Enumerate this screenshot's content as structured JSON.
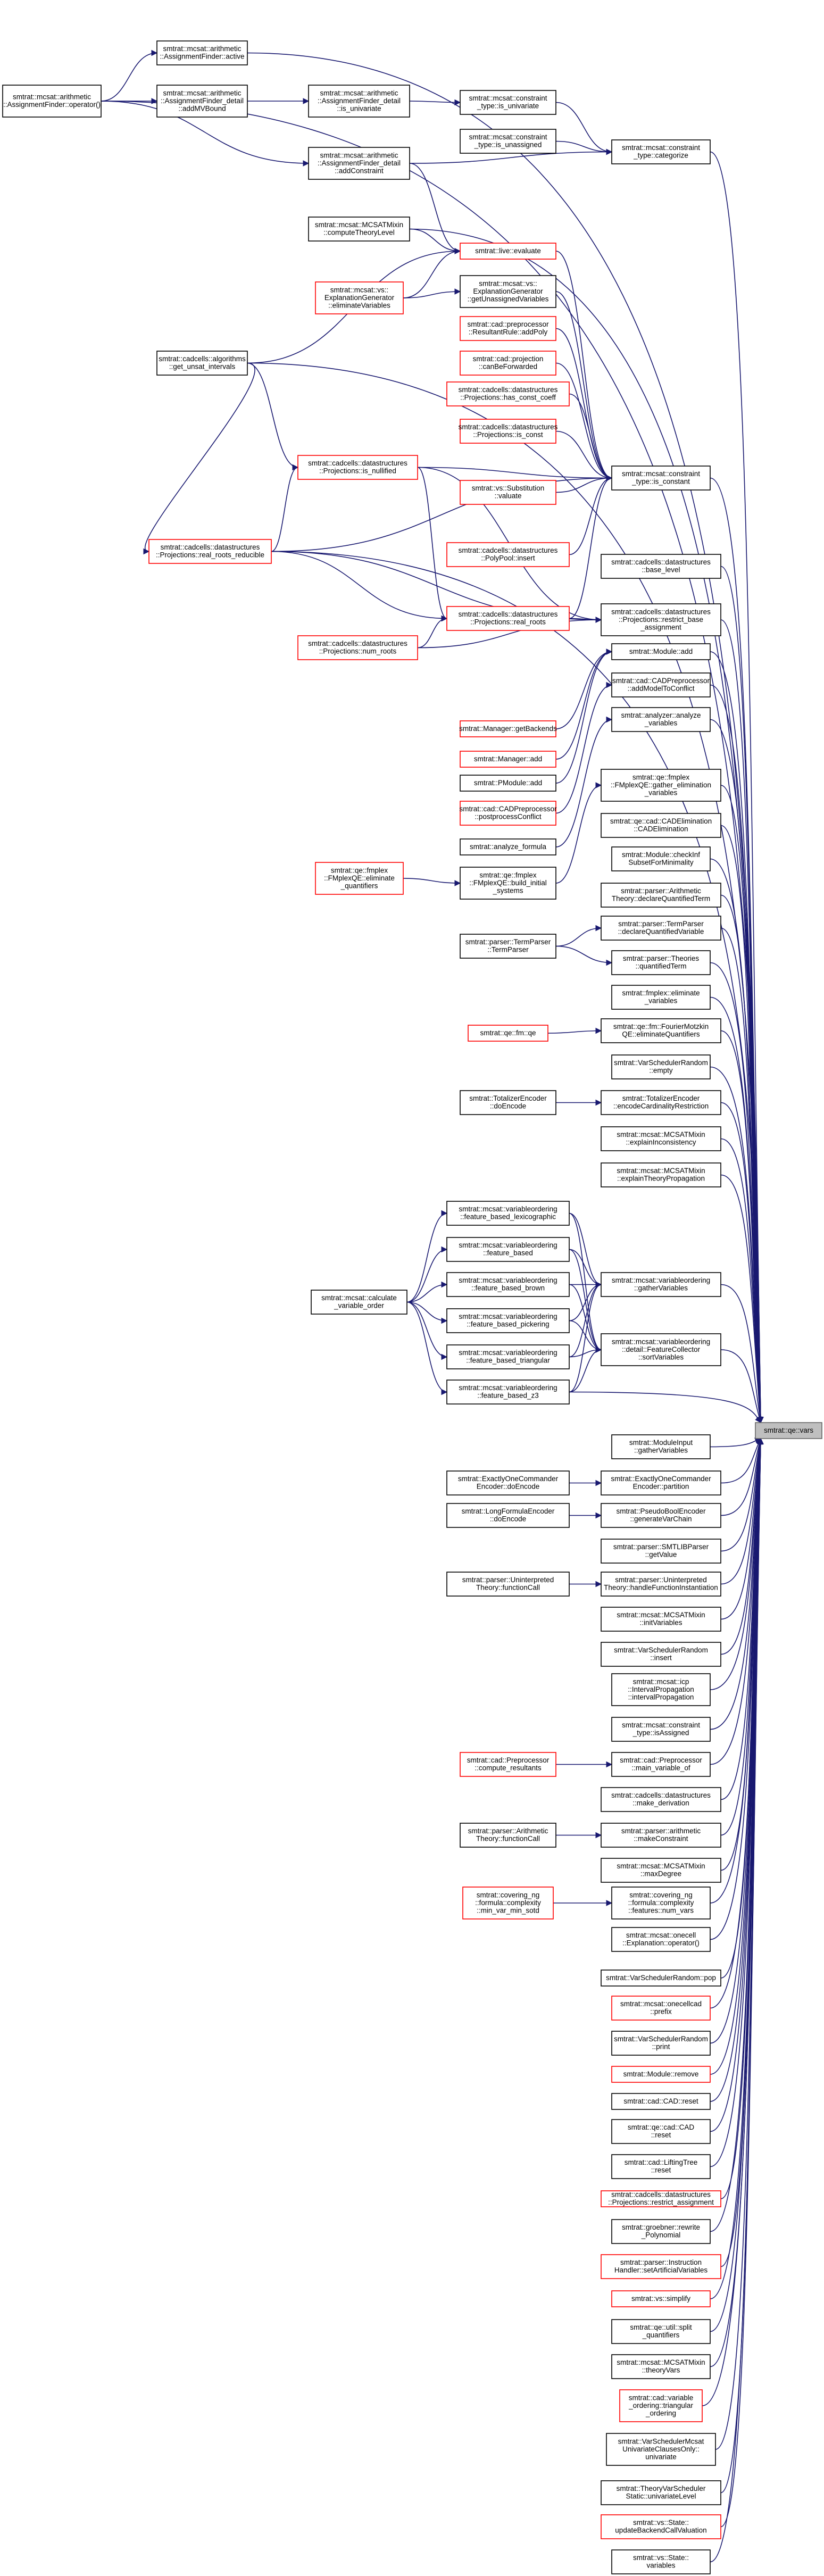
{
  "graph": {
    "title": "",
    "edge_color": "#191970",
    "target_fill": "#bfbfbf",
    "normal_border": "#000000",
    "red_border": "#ff0000",
    "nodes": [
      {
        "id": "af_active",
        "label": [
          "smtrat::mcsat::arithmetic",
          "::AssignmentFinder::active"
        ],
        "style": "black"
      },
      {
        "id": "af_op",
        "label": [
          "smtrat::mcsat::arithmetic",
          "::AssignmentFinder::operator()"
        ],
        "style": "black"
      },
      {
        "id": "af_addmvbound",
        "label": [
          "smtrat::mcsat::arithmetic",
          "::AssignmentFinder_detail",
          "::addMVBound"
        ],
        "style": "black"
      },
      {
        "id": "af_isunivariate",
        "label": [
          "smtrat::mcsat::arithmetic",
          "::AssignmentFinder_detail",
          "::is_univariate"
        ],
        "style": "black"
      },
      {
        "id": "af_addconstraint",
        "label": [
          "smtrat::mcsat::arithmetic",
          "::AssignmentFinder_detail",
          "::addConstraint"
        ],
        "style": "black"
      },
      {
        "id": "ct_isunivariate",
        "label": [
          "smtrat::mcsat::constraint",
          "_type::is_univariate"
        ],
        "style": "black"
      },
      {
        "id": "ct_isunassigned",
        "label": [
          "smtrat::mcsat::constraint",
          "_type::is_unassigned"
        ],
        "style": "black"
      },
      {
        "id": "ct_categorize",
        "label": [
          "smtrat::mcsat::constraint",
          "_type::categorize"
        ],
        "style": "black"
      },
      {
        "id": "mcsat_ctl",
        "label": [
          "smtrat::mcsat::MCSATMixin",
          "::computeTheoryLevel"
        ],
        "style": "black"
      },
      {
        "id": "live_evaluate",
        "label": [
          "smtrat::live::evaluate"
        ],
        "style": "red"
      },
      {
        "id": "vs_elim",
        "label": [
          "smtrat::mcsat::vs::",
          "ExplanationGenerator",
          "::eliminateVariables"
        ],
        "style": "red"
      },
      {
        "id": "vs_getunassigned",
        "label": [
          "smtrat::mcsat::vs::",
          "ExplanationGenerator",
          "::getUnassignedVariables"
        ],
        "style": "black"
      },
      {
        "id": "cad_addpoly",
        "label": [
          "smtrat::cad::preprocessor",
          "::ResultantRule::addPoly"
        ],
        "style": "red"
      },
      {
        "id": "cad_canbefwd",
        "label": [
          "smtrat::cad::projection",
          "::canBeForwarded"
        ],
        "style": "red"
      },
      {
        "id": "algo_getunsat",
        "label": [
          "smtrat::cadcells::algorithms",
          "::get_unsat_intervals"
        ],
        "style": "black"
      },
      {
        "id": "ds_hasconstcoeff",
        "label": [
          "smtrat::cadcells::datastructures",
          "::Projections::has_const_coeff"
        ],
        "style": "red"
      },
      {
        "id": "ds_iscond",
        "label": [
          "smtrat::cadcells::datastructures",
          "::Projections::is_const"
        ],
        "style": "red"
      },
      {
        "id": "ds_isnullified",
        "label": [
          "smtrat::cadcells::datastructures",
          "::Projections::is_nullified"
        ],
        "style": "red"
      },
      {
        "id": "vs_subst",
        "label": [
          "smtrat::vs::Substitution",
          "::valuate"
        ],
        "style": "red"
      },
      {
        "id": "ct_isconstant",
        "label": [
          "smtrat::mcsat::constraint",
          "_type::is_constant"
        ],
        "style": "black"
      },
      {
        "id": "ds_realrootsred",
        "label": [
          "smtrat::cadcells::datastructures",
          "::Projections::real_roots_reducible"
        ],
        "style": "red"
      },
      {
        "id": "ds_polypool",
        "label": [
          "smtrat::cadcells::datastructures",
          "::PolyPool::insert"
        ],
        "style": "red"
      },
      {
        "id": "ds_baselevel",
        "label": [
          "smtrat::cadcells::datastructures",
          "::base_level"
        ],
        "style": "black"
      },
      {
        "id": "ds_realroots",
        "label": [
          "smtrat::cadcells::datastructures",
          "::Projections::real_roots"
        ],
        "style": "red"
      },
      {
        "id": "ds_restrictbase",
        "label": [
          "smtrat::cadcells::datastructures",
          "::Projections::restrict_base",
          "_assignment"
        ],
        "style": "black"
      },
      {
        "id": "ds_numroots",
        "label": [
          "smtrat::cadcells::datastructures",
          "::Projections::num_roots"
        ],
        "style": "red"
      },
      {
        "id": "module_add",
        "label": [
          "smtrat::Module::add"
        ],
        "style": "black"
      },
      {
        "id": "cadpp_addmodel",
        "label": [
          "smtrat::cad::CADPreprocessor",
          "::addModelToConflict"
        ],
        "style": "black"
      },
      {
        "id": "manager_getbackends",
        "label": [
          "smtrat::Manager::getBackends"
        ],
        "style": "red"
      },
      {
        "id": "analyzer_vars",
        "label": [
          "smtrat::analyzer::analyze",
          "_variables"
        ],
        "style": "black"
      },
      {
        "id": "manager_add",
        "label": [
          "smtrat::Manager::add"
        ],
        "style": "red"
      },
      {
        "id": "pmodule_add",
        "label": [
          "smtrat::PModule::add"
        ],
        "style": "black"
      },
      {
        "id": "fmplex_gather",
        "label": [
          "smtrat::qe::fmplex",
          "::FMplexQE::gather_elimination",
          "_variables"
        ],
        "style": "black"
      },
      {
        "id": "cadpp_postprocess",
        "label": [
          "smtrat::cad::CADPreprocessor",
          "::postprocessConflict"
        ],
        "style": "red"
      },
      {
        "id": "cadelim",
        "label": [
          "smtrat::qe::cad::CADElimination",
          "::CADElimination"
        ],
        "style": "black"
      },
      {
        "id": "analyze_formula",
        "label": [
          "smtrat::analyze_formula"
        ],
        "style": "black"
      },
      {
        "id": "fmplex_elimq",
        "label": [
          "smtrat::qe::fmplex",
          "::FMplexQE::eliminate",
          "_quantifiers"
        ],
        "style": "red"
      },
      {
        "id": "fmplex_build",
        "label": [
          "smtrat::qe::fmplex",
          "::FMplexQE::build_initial",
          "_systems"
        ],
        "style": "black"
      },
      {
        "id": "module_checkinf",
        "label": [
          "smtrat::Module::checkInf",
          "SubsetForMinimality"
        ],
        "style": "black"
      },
      {
        "id": "parser_declq",
        "label": [
          "smtrat::parser::Arithmetic",
          "Theory::declareQuantifiedTerm"
        ],
        "style": "black"
      },
      {
        "id": "parser_termparser",
        "label": [
          "smtrat::parser::TermParser",
          "::TermParser"
        ],
        "style": "black"
      },
      {
        "id": "parser_declqv",
        "label": [
          "smtrat::parser::TermParser",
          "::declareQuantifiedVariable"
        ],
        "style": "black"
      },
      {
        "id": "parser_theories",
        "label": [
          "smtrat::parser::Theories",
          "::quantifiedTerm"
        ],
        "style": "black"
      },
      {
        "id": "fmplex_elimvars",
        "label": [
          "smtrat::fmplex::eliminate",
          "_variables"
        ],
        "style": "black"
      },
      {
        "id": "qe_fm",
        "label": [
          "smtrat::qe::fm::qe"
        ],
        "style": "red"
      },
      {
        "id": "fm_elimq",
        "label": [
          "smtrat::qe::fm::FourierMotzkin",
          "QE::eliminateQuantifiers"
        ],
        "style": "black"
      },
      {
        "id": "vsr_empty",
        "label": [
          "smtrat::VarSchedulerRandom",
          "::empty"
        ],
        "style": "black"
      },
      {
        "id": "tenc_doencode",
        "label": [
          "smtrat::TotalizerEncoder",
          "::doEncode"
        ],
        "style": "black"
      },
      {
        "id": "tenc_card",
        "label": [
          "smtrat::TotalizerEncoder",
          "::encodeCardinalityRestriction"
        ],
        "style": "black"
      },
      {
        "id": "mcsat_explainincons",
        "label": [
          "smtrat::mcsat::MCSATMixin",
          "::explainInconsistency"
        ],
        "style": "black"
      },
      {
        "id": "mcsat_explaintprop",
        "label": [
          "smtrat::mcsat::MCSATMixin",
          "::explainTheoryPropagation"
        ],
        "style": "black"
      },
      {
        "id": "vo_lex",
        "label": [
          "smtrat::mcsat::variableordering",
          "::feature_based_lexicographic"
        ],
        "style": "black"
      },
      {
        "id": "vo_fb",
        "label": [
          "smtrat::mcsat::variableordering",
          "::feature_based"
        ],
        "style": "black"
      },
      {
        "id": "vo_calc",
        "label": [
          "smtrat::mcsat::calculate",
          "_variable_order"
        ],
        "style": "black"
      },
      {
        "id": "vo_brown",
        "label": [
          "smtrat::mcsat::variableordering",
          "::feature_based_brown"
        ],
        "style": "black"
      },
      {
        "id": "vo_gather",
        "label": [
          "smtrat::mcsat::variableordering",
          "::gatherVariables"
        ],
        "style": "black"
      },
      {
        "id": "vo_pick",
        "label": [
          "smtrat::mcsat::variableordering",
          "::feature_based_pickering"
        ],
        "style": "black"
      },
      {
        "id": "vo_tri",
        "label": [
          "smtrat::mcsat::variableordering",
          "::feature_based_triangular"
        ],
        "style": "black"
      },
      {
        "id": "vo_sort",
        "label": [
          "smtrat::mcsat::variableordering",
          "::detail::FeatureCollector",
          "::sortVariables"
        ],
        "style": "black"
      },
      {
        "id": "vo_z3",
        "label": [
          "smtrat::mcsat::variableordering",
          "::feature_based_z3"
        ],
        "style": "black"
      },
      {
        "id": "target",
        "label": [
          "smtrat::qe::vars"
        ],
        "style": "target"
      },
      {
        "id": "modinput_gather",
        "label": [
          "smtrat::ModuleInput",
          "::gatherVariables"
        ],
        "style": "black"
      },
      {
        "id": "eoc_doencode",
        "label": [
          "smtrat::ExactlyOneCommander",
          "Encoder::doEncode"
        ],
        "style": "black"
      },
      {
        "id": "eoc_partition",
        "label": [
          "smtrat::ExactlyOneCommander",
          "Encoder::partition"
        ],
        "style": "black"
      },
      {
        "id": "lfe_doencode",
        "label": [
          "smtrat::LongFormulaEncoder",
          "::doEncode"
        ],
        "style": "black"
      },
      {
        "id": "pbe_genvarchain",
        "label": [
          "smtrat::PseudoBoolEncoder",
          "::generateVarChain"
        ],
        "style": "black"
      },
      {
        "id": "smtlib_getvalue",
        "label": [
          "smtrat::parser::SMTLIBParser",
          "::getValue"
        ],
        "style": "black"
      },
      {
        "id": "ut_funcall",
        "label": [
          "smtrat::parser::Uninterpreted",
          "Theory::functionCall"
        ],
        "style": "black"
      },
      {
        "id": "ut_handlefi",
        "label": [
          "smtrat::parser::Uninterpreted",
          "Theory::handleFunctionInstantiation"
        ],
        "style": "black"
      },
      {
        "id": "mcsat_initvars",
        "label": [
          "smtrat::mcsat::MCSATMixin",
          "::initVariables"
        ],
        "style": "black"
      },
      {
        "id": "vsr_insert",
        "label": [
          "smtrat::VarSchedulerRandom",
          "::insert"
        ],
        "style": "black"
      },
      {
        "id": "icp_intprop",
        "label": [
          "smtrat::mcsat::icp",
          "::IntervalPropagation",
          "::intervalPropagation"
        ],
        "style": "black"
      },
      {
        "id": "ct_isassigned",
        "label": [
          "smtrat::mcsat::constraint",
          "_type::isAssigned"
        ],
        "style": "black"
      },
      {
        "id": "cadpp_computeres",
        "label": [
          "smtrat::cad::Preprocessor",
          "::compute_resultants"
        ],
        "style": "red"
      },
      {
        "id": "cadpp_mainvar",
        "label": [
          "smtrat::cad::Preprocessor",
          "::main_variable_of"
        ],
        "style": "black"
      },
      {
        "id": "ds_makederiv",
        "label": [
          "smtrat::cadcells::datastructures",
          "::make_derivation"
        ],
        "style": "black"
      },
      {
        "id": "at_funcall",
        "label": [
          "smtrat::parser::Arithmetic",
          "Theory::functionCall"
        ],
        "style": "black"
      },
      {
        "id": "at_makeconstraint",
        "label": [
          "smtrat::parser::arithmetic",
          "::makeConstraint"
        ],
        "style": "black"
      },
      {
        "id": "mcsat_maxdeg",
        "label": [
          "smtrat::mcsat::MCSATMixin",
          "::maxDegree"
        ],
        "style": "black"
      },
      {
        "id": "cov_minvarmin",
        "label": [
          "smtrat::covering_ng",
          "::formula::complexity",
          "::min_var_min_sotd"
        ],
        "style": "red"
      },
      {
        "id": "cov_numvars",
        "label": [
          "smtrat::covering_ng",
          "::formula::complexity",
          "::features::num_vars"
        ],
        "style": "black"
      },
      {
        "id": "onecell_op",
        "label": [
          "smtrat::mcsat::onecell",
          "::Explanation::operator()"
        ],
        "style": "black"
      },
      {
        "id": "vsr_pop",
        "label": [
          "smtrat::VarSchedulerRandom::pop"
        ],
        "style": "black"
      },
      {
        "id": "onecellcad_prefix",
        "label": [
          "smtrat::mcsat::onecellcad",
          "::prefix"
        ],
        "style": "red"
      },
      {
        "id": "vsr_print",
        "label": [
          "smtrat::VarSchedulerRandom",
          "::print"
        ],
        "style": "black"
      },
      {
        "id": "module_remove",
        "label": [
          "smtrat::Module::remove"
        ],
        "style": "red"
      },
      {
        "id": "cad_reset",
        "label": [
          "smtrat::cad::CAD::reset"
        ],
        "style": "black"
      },
      {
        "id": "qecad_reset",
        "label": [
          "smtrat::qe::cad::CAD",
          "::reset"
        ],
        "style": "black"
      },
      {
        "id": "cad_liftingtree",
        "label": [
          "smtrat::cad::LiftingTree",
          "::reset"
        ],
        "style": "black"
      },
      {
        "id": "ds_restrictassign",
        "label": [
          "smtrat::cadcells::datastructures",
          "::Projections::restrict_assignment"
        ],
        "style": "red"
      },
      {
        "id": "groebner_rewrite",
        "label": [
          "smtrat::groebner::rewrite",
          "_Polynomial"
        ],
        "style": "black"
      },
      {
        "id": "parser_setartificial",
        "label": [
          "smtrat::parser::Instruction",
          "Handler::setArtificialVariables"
        ],
        "style": "red"
      },
      {
        "id": "vs_simplify",
        "label": [
          "smtrat::vs::simplify"
        ],
        "style": "red"
      },
      {
        "id": "qe_split",
        "label": [
          "smtrat::qe::util::split",
          "_quantifiers"
        ],
        "style": "black"
      },
      {
        "id": "mcsat_theoryvars",
        "label": [
          "smtrat::mcsat::MCSATMixin",
          "::theoryVars"
        ],
        "style": "black"
      },
      {
        "id": "cad_triangular",
        "label": [
          "smtrat::cad::variable",
          "_ordering::triangular",
          "_ordering"
        ],
        "style": "red"
      },
      {
        "id": "vsmcsat_univariate",
        "label": [
          "smtrat::VarSchedulerMcsat",
          "UnivariateClausesOnly::",
          "univariate"
        ],
        "style": "black"
      },
      {
        "id": "tvs_univariate",
        "label": [
          "smtrat::TheoryVarScheduler",
          "Static::univariateLevel"
        ],
        "style": "black"
      },
      {
        "id": "vs_state_update",
        "label": [
          "smtrat::vs::State::",
          "updateBackendCallValuation"
        ],
        "style": "red"
      },
      {
        "id": "vs_state_vars",
        "label": [
          "smtrat::vs::State::",
          "variables"
        ],
        "style": "black"
      }
    ]
  }
}
